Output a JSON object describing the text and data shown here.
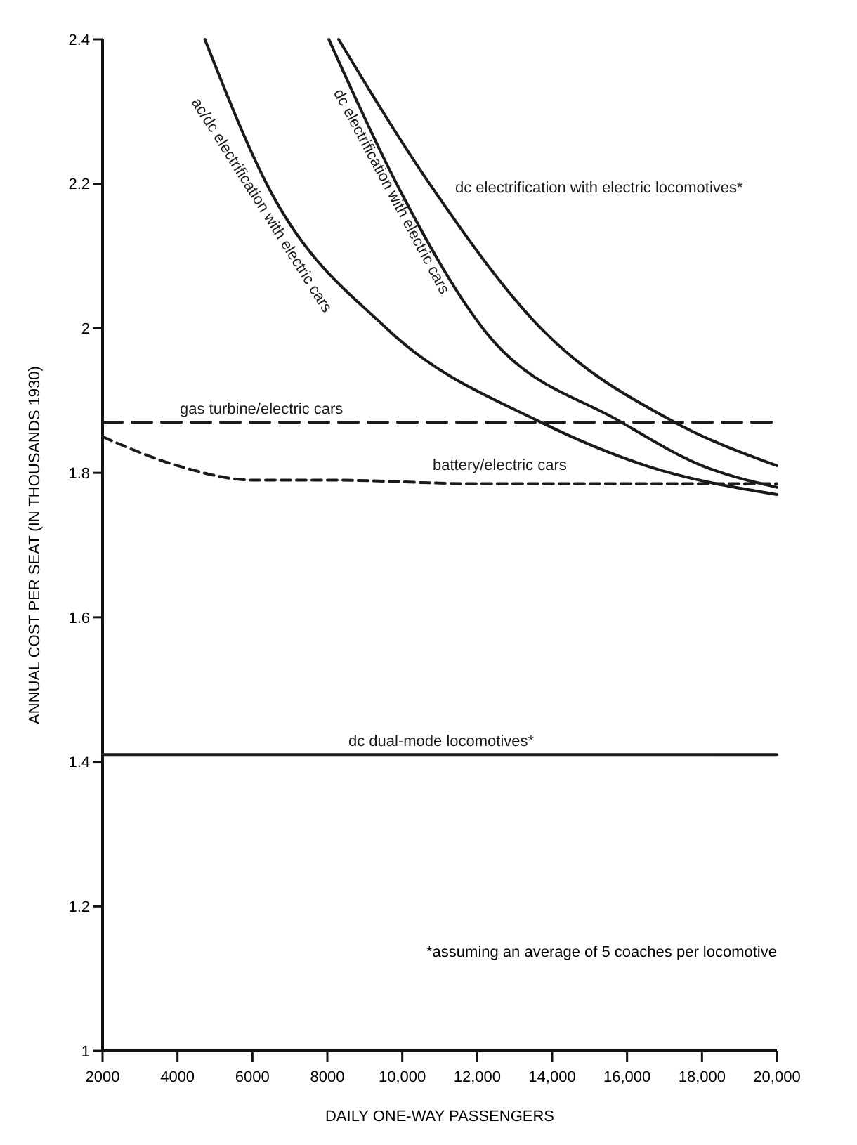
{
  "chart_data": {
    "type": "line",
    "xlabel": "DAILY ONE-WAY PASSENGERS",
    "ylabel": "ANNUAL COST PER SEAT (IN THOUSANDS 1930)",
    "xlim": [
      2000,
      20000
    ],
    "ylim": [
      1.0,
      2.4
    ],
    "xticks": [
      2000,
      4000,
      6000,
      8000,
      {
        "value": 10000,
        "label": "10,000"
      },
      {
        "value": 12000,
        "label": "12,000"
      },
      {
        "value": 14000,
        "label": "14,000"
      },
      {
        "value": 16000,
        "label": "16,000"
      },
      {
        "value": 18000,
        "label": "18,000"
      },
      {
        "value": 20000,
        "label": "20,000"
      }
    ],
    "yticks": [
      1.0,
      1.2,
      1.4,
      1.6,
      1.8,
      2.0,
      2.2,
      2.4
    ],
    "grid": false,
    "marker": "none",
    "series": [
      {
        "name": "ac/dc electrification with electric cars",
        "color": "#1a1a1a",
        "line_style": "solid",
        "x": [
          4730,
          6380,
          9580,
          13700,
          16500,
          20000
        ],
        "values": [
          2.4,
          2.2,
          2.0,
          1.87,
          1.81,
          1.77
        ]
      },
      {
        "name": "dc electrification with electric cars",
        "color": "#1a1a1a",
        "line_style": "solid",
        "x": [
          8040,
          9850,
          12150,
          15850,
          18000,
          20000
        ],
        "values": [
          2.4,
          2.2,
          2.0,
          1.87,
          1.81,
          1.78
        ]
      },
      {
        "name": "dc electrification with electric locomotives*",
        "color": "#1a1a1a",
        "line_style": "solid",
        "x": [
          8300,
          10730,
          13700,
          17270,
          20000
        ],
        "values": [
          2.4,
          2.2,
          2.0,
          1.87,
          1.81
        ]
      },
      {
        "name": "gas turbine/electric cars",
        "color": "#1a1a1a",
        "line_style": "dashed",
        "x": [
          2000,
          20000
        ],
        "values": [
          1.87,
          1.87
        ]
      },
      {
        "name": "battery/electric cars",
        "color": "#1a1a1a",
        "line_style": "dotted",
        "x": [
          2000,
          4000,
          6000,
          8000,
          12000,
          20000
        ],
        "values": [
          1.85,
          1.81,
          1.79,
          1.79,
          1.785,
          1.785
        ]
      },
      {
        "name": "dc dual-mode locomotives*",
        "color": "#1a1a1a",
        "line_style": "solid",
        "x": [
          2000,
          20000
        ],
        "values": [
          1.41,
          1.41
        ]
      }
    ],
    "annotations": [
      "*assuming an average of 5 coaches per locomotive"
    ]
  }
}
